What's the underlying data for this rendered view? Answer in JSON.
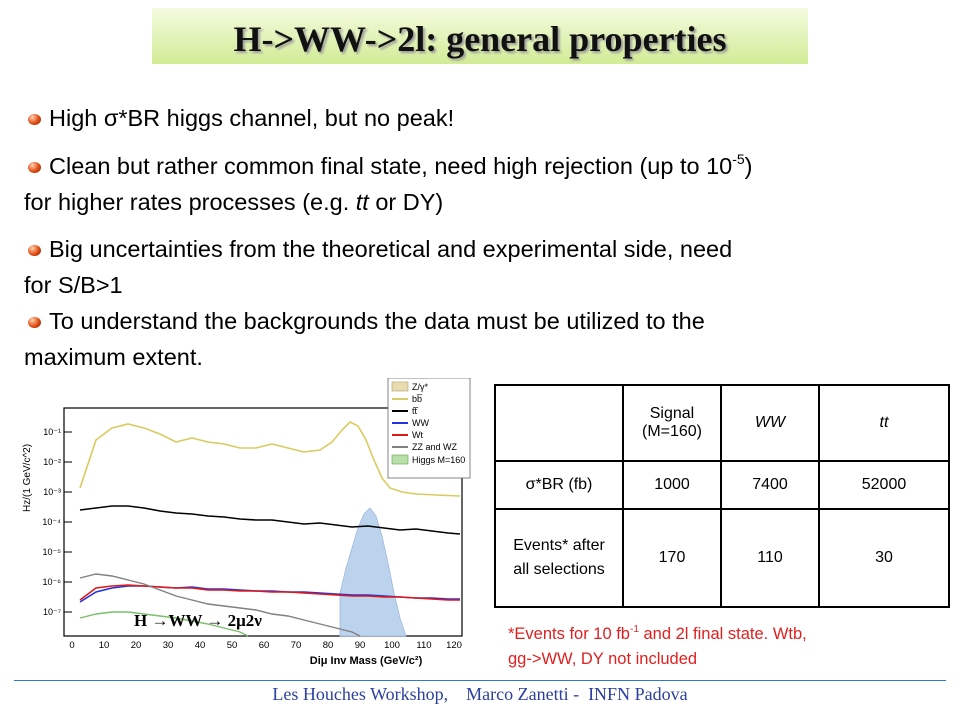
{
  "title": "H->WW->2l: general properties",
  "bullets": [
    {
      "text": "High σ*BR higgs channel, but no peak!"
    },
    {
      "text_a": "Clean but rather common final state, need high rejection (up to 10",
      "sup": "-5",
      "text_b": ")",
      "text_c": "for higher rates processes (e.g. ",
      "italic": "tt",
      "text_d": " or DY)"
    },
    {
      "text_a": "Big uncertainties from the theoretical and experimental side, need",
      "text_b": "for S/B>1"
    },
    {
      "text_a": "To understand the backgrounds the data must be utilized to the",
      "text_b": "maximum extent."
    }
  ],
  "plot": {
    "ylabel": "Hz/(1 GeV/c^2)",
    "xlabel": "Diμ Inv Mass (GeV/c²)",
    "yticks": [
      "10⁻¹",
      "10⁻²",
      "10⁻³",
      "10⁻⁴",
      "10⁻⁵",
      "10⁻⁶",
      "10⁻⁷"
    ],
    "xticks": [
      "0",
      "10",
      "20",
      "30",
      "40",
      "50",
      "60",
      "70",
      "80",
      "90",
      "100",
      "110",
      "120"
    ],
    "legend": [
      {
        "label": "Z/γ*",
        "color": "#e8dcb0",
        "kind": "fill"
      },
      {
        "label": "bb̅",
        "color": "#d4cf6a",
        "kind": "line"
      },
      {
        "label": "tt̅",
        "color": "#000000",
        "kind": "line"
      },
      {
        "label": "WW",
        "color": "#2233dd",
        "kind": "line"
      },
      {
        "label": "Wt",
        "color": "#e01818",
        "kind": "line"
      },
      {
        "label": "ZZ and WZ",
        "color": "#808080",
        "kind": "line"
      },
      {
        "label": "Higgs M=160",
        "color": "#b8e0a8",
        "kind": "fill"
      }
    ],
    "annotation": "H →WW → 2μ2ν"
  },
  "table": {
    "header": [
      "",
      "Signal (M=160)",
      "WW",
      "tt"
    ],
    "rows": [
      [
        "σ*BR  (fb)",
        "1000",
        "7400",
        "52000"
      ],
      [
        "Events* after all selections",
        "170",
        "110",
        "30"
      ]
    ]
  },
  "note": {
    "a": "*Events for 10 fb",
    "sup": "-1",
    "b": " and 2l final state. Wtb,",
    "c": "gg->WW, DY not included"
  },
  "footer": "Les Houches Workshop,    Marco Zanetti -  INFN Padova"
}
